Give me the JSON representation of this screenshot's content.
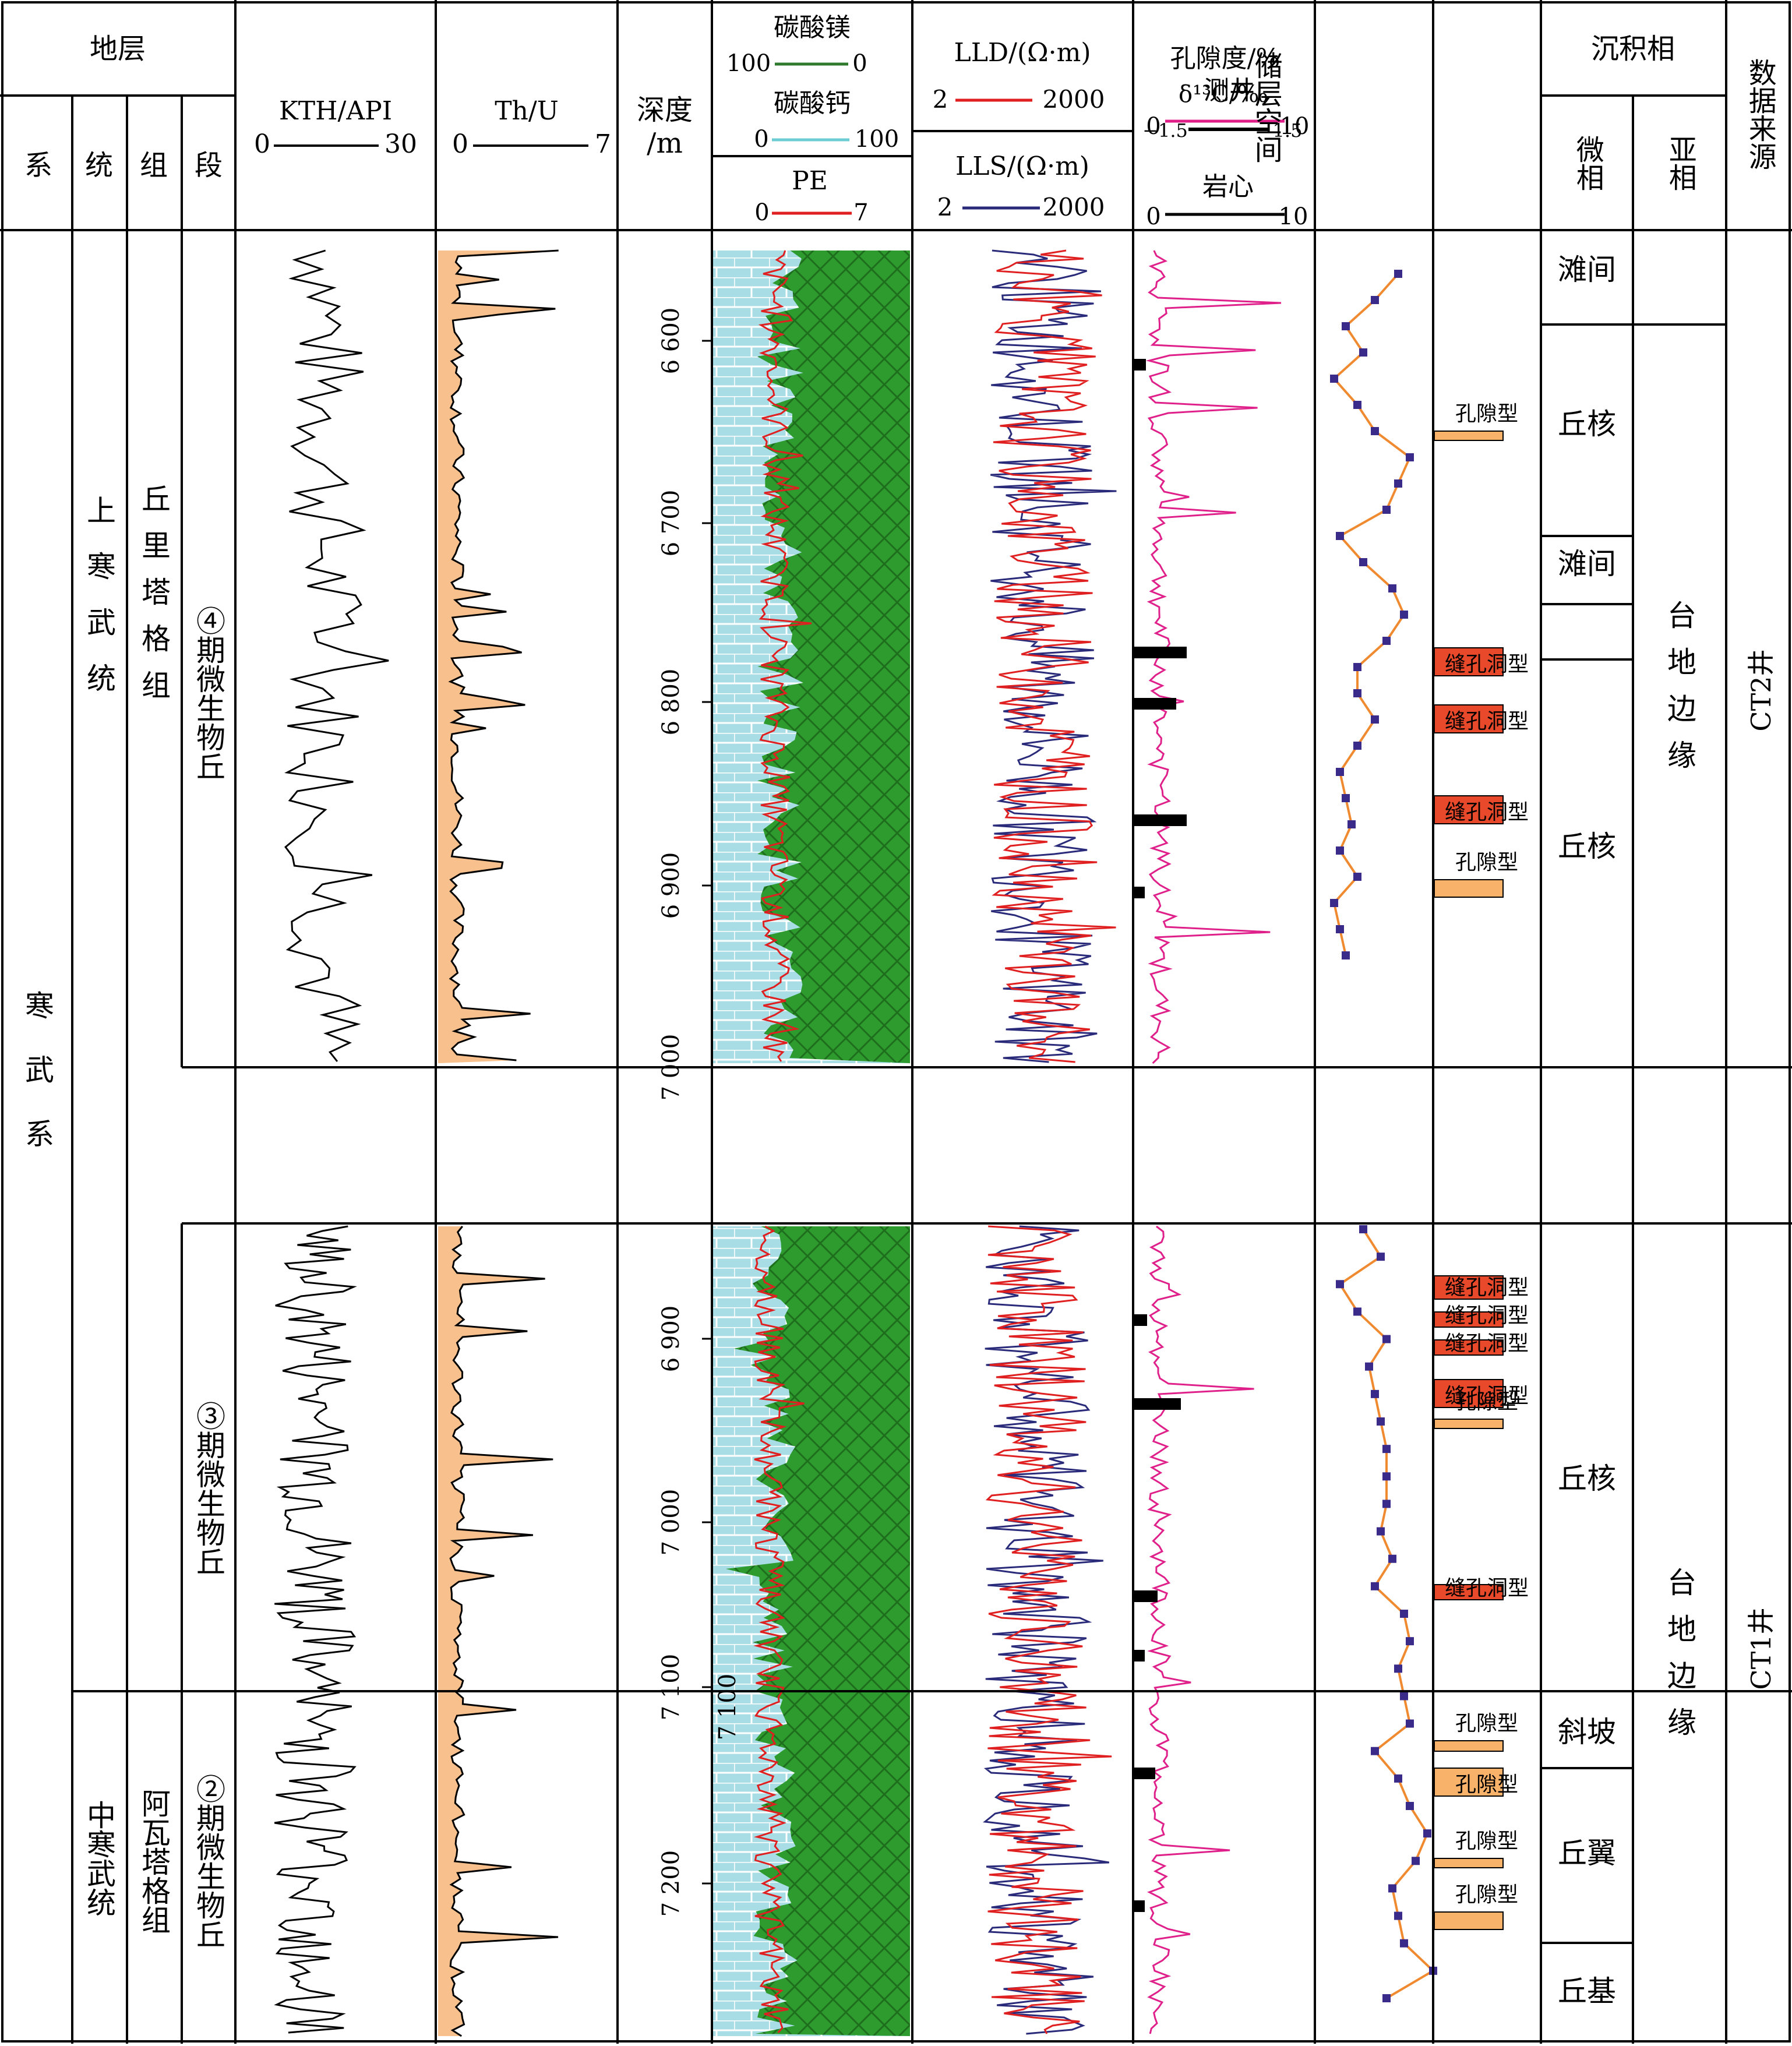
{
  "header": {
    "stratum": "地层",
    "system": "系",
    "series": "统",
    "formation": "组",
    "member": "段",
    "kth": {
      "title": "KTH/API",
      "min": "0",
      "max": "30"
    },
    "thu": {
      "title": "Th/U",
      "min": "0",
      "max": "7"
    },
    "depth": {
      "line1": "深度",
      "line2": "/m"
    },
    "lith": {
      "mg": {
        "title": "碳酸镁",
        "left": "100",
        "right": "0"
      },
      "ca": {
        "title": "碳酸钙",
        "left": "0",
        "right": "100"
      },
      "pe": {
        "title": "PE",
        "left": "0",
        "right": "7"
      }
    },
    "lld": {
      "title": "LLD/(Ω·m)",
      "left": "2",
      "right": "2000"
    },
    "lls": {
      "title": "LLS/(Ω·m)",
      "left": "2",
      "right": "2000"
    },
    "poro": {
      "title": "孔隙度/%",
      "sub": "测井",
      "left": "0",
      "right": "10"
    },
    "core": {
      "title": "岩心",
      "left": "0",
      "right": "10"
    },
    "d13c": {
      "title": "δ¹³C/‰",
      "left": "−1.5",
      "right": "1.5"
    },
    "reservoir": "储层空间",
    "facies": "沉积相",
    "microfacies": "微相",
    "subfacies": "亚相",
    "source": "数据来源"
  },
  "strata": {
    "system": "寒武系",
    "upper_series": "上寒武统",
    "middle_series": "中寒武统",
    "qiulitage": "丘里塔格组",
    "awatage": "阿瓦塔格组",
    "member4": "④期微生物丘",
    "member3": "③期微生物丘",
    "member2": "②期微生物丘"
  },
  "depth_ticks_upper": [
    "6 600",
    "6 700",
    "6 800",
    "6 900",
    "7 000"
  ],
  "depth_ticks_lower": [
    "6 900",
    "7 000",
    "7 100",
    "7 200"
  ],
  "lower_extra_tick": "7 100",
  "reservoir_upper": [
    {
      "label": "孔隙型",
      "type": "pore"
    },
    {
      "label": "缝孔洞型",
      "type": "vug"
    },
    {
      "label": "缝孔洞型",
      "type": "vug"
    },
    {
      "label": "缝孔洞型",
      "type": "vug"
    },
    {
      "label": "孔隙型",
      "type": "pore"
    }
  ],
  "reservoir_lower": [
    {
      "label": "缝孔洞型",
      "type": "vug"
    },
    {
      "label": "缝孔洞型",
      "type": "vug"
    },
    {
      "label": "缝孔洞型",
      "type": "vug"
    },
    {
      "label": "缝孔洞型",
      "type": "vug"
    },
    {
      "label": "缝孔洞型",
      "type": "vug"
    },
    {
      "label": "孔隙型",
      "type": "pore"
    },
    {
      "label": "孔隙型",
      "type": "pore"
    },
    {
      "label": "孔隙型",
      "type": "pore"
    },
    {
      "label": "孔隙型",
      "type": "pore"
    },
    {
      "label": "孔隙型",
      "type": "pore"
    }
  ],
  "microfacies_upper": [
    "滩间",
    "丘核",
    "滩间",
    "丘核"
  ],
  "microfacies_lower": [
    "丘核",
    "斜坡",
    "丘翼",
    "丘基"
  ],
  "subfacies": "台地边缘",
  "sources": [
    "CT2井",
    "CT1井"
  ],
  "colors": {
    "orange_fill": "#F8C08C",
    "dolomite": "#2E9B2E",
    "limestone": "#A8DDE6",
    "lld": "#E02020",
    "lls": "#2A2A7A",
    "poro": "#E0208A",
    "d13c_line": "#F08A30",
    "d13c_mark": "#3A2A8A",
    "vug": "#E8492A",
    "pore": "#F8B26A"
  }
}
